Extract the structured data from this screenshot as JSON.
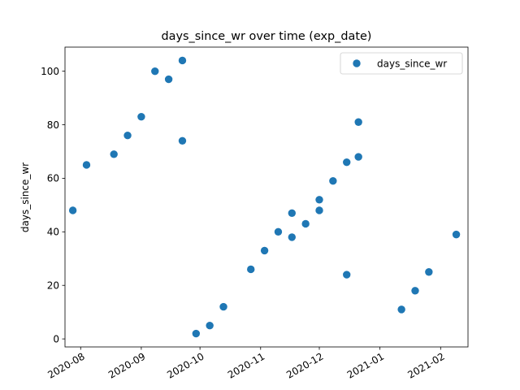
{
  "chart_data": {
    "type": "scatter",
    "title": "days_since_wr over time (exp_date)",
    "xlabel": "",
    "ylabel": "days_since_wr",
    "x_axis_type": "date",
    "xlim": [
      "2020-07-24",
      "2021-02-15"
    ],
    "ylim": [
      -3,
      109
    ],
    "x_ticks": [
      "2020-08-01",
      "2020-09-01",
      "2020-10-01",
      "2020-11-01",
      "2020-12-01",
      "2021-01-01",
      "2021-02-01"
    ],
    "x_tick_labels": [
      "2020-08",
      "2020-09",
      "2020-10",
      "2020-11",
      "2020-12",
      "2021-01",
      "2021-02"
    ],
    "y_ticks": [
      0,
      20,
      40,
      60,
      80,
      100
    ],
    "y_tick_labels": [
      "0",
      "20",
      "40",
      "60",
      "80",
      "100"
    ],
    "grid": false,
    "legend": {
      "position": "top-right",
      "entries": [
        "days_since_wr"
      ]
    },
    "series": [
      {
        "name": "days_since_wr",
        "color": "#1f77b4",
        "points": [
          {
            "x": "2020-07-28",
            "y": 48
          },
          {
            "x": "2020-08-04",
            "y": 65
          },
          {
            "x": "2020-08-18",
            "y": 69
          },
          {
            "x": "2020-08-25",
            "y": 76
          },
          {
            "x": "2020-09-01",
            "y": 83
          },
          {
            "x": "2020-09-08",
            "y": 100
          },
          {
            "x": "2020-09-15",
            "y": 97
          },
          {
            "x": "2020-09-22",
            "y": 104
          },
          {
            "x": "2020-09-22",
            "y": 74
          },
          {
            "x": "2020-09-29",
            "y": 2
          },
          {
            "x": "2020-10-06",
            "y": 5
          },
          {
            "x": "2020-10-13",
            "y": 12
          },
          {
            "x": "2020-10-27",
            "y": 26
          },
          {
            "x": "2020-11-03",
            "y": 33
          },
          {
            "x": "2020-11-10",
            "y": 40
          },
          {
            "x": "2020-11-17",
            "y": 47
          },
          {
            "x": "2020-11-17",
            "y": 38
          },
          {
            "x": "2020-11-24",
            "y": 43
          },
          {
            "x": "2020-12-01",
            "y": 52
          },
          {
            "x": "2020-12-01",
            "y": 48
          },
          {
            "x": "2020-12-08",
            "y": 59
          },
          {
            "x": "2020-12-15",
            "y": 66
          },
          {
            "x": "2020-12-15",
            "y": 24
          },
          {
            "x": "2020-12-21",
            "y": 81
          },
          {
            "x": "2020-12-21",
            "y": 68
          },
          {
            "x": "2021-01-12",
            "y": 11
          },
          {
            "x": "2021-01-19",
            "y": 18
          },
          {
            "x": "2021-01-26",
            "y": 25
          },
          {
            "x": "2021-02-09",
            "y": 39
          }
        ]
      }
    ]
  }
}
